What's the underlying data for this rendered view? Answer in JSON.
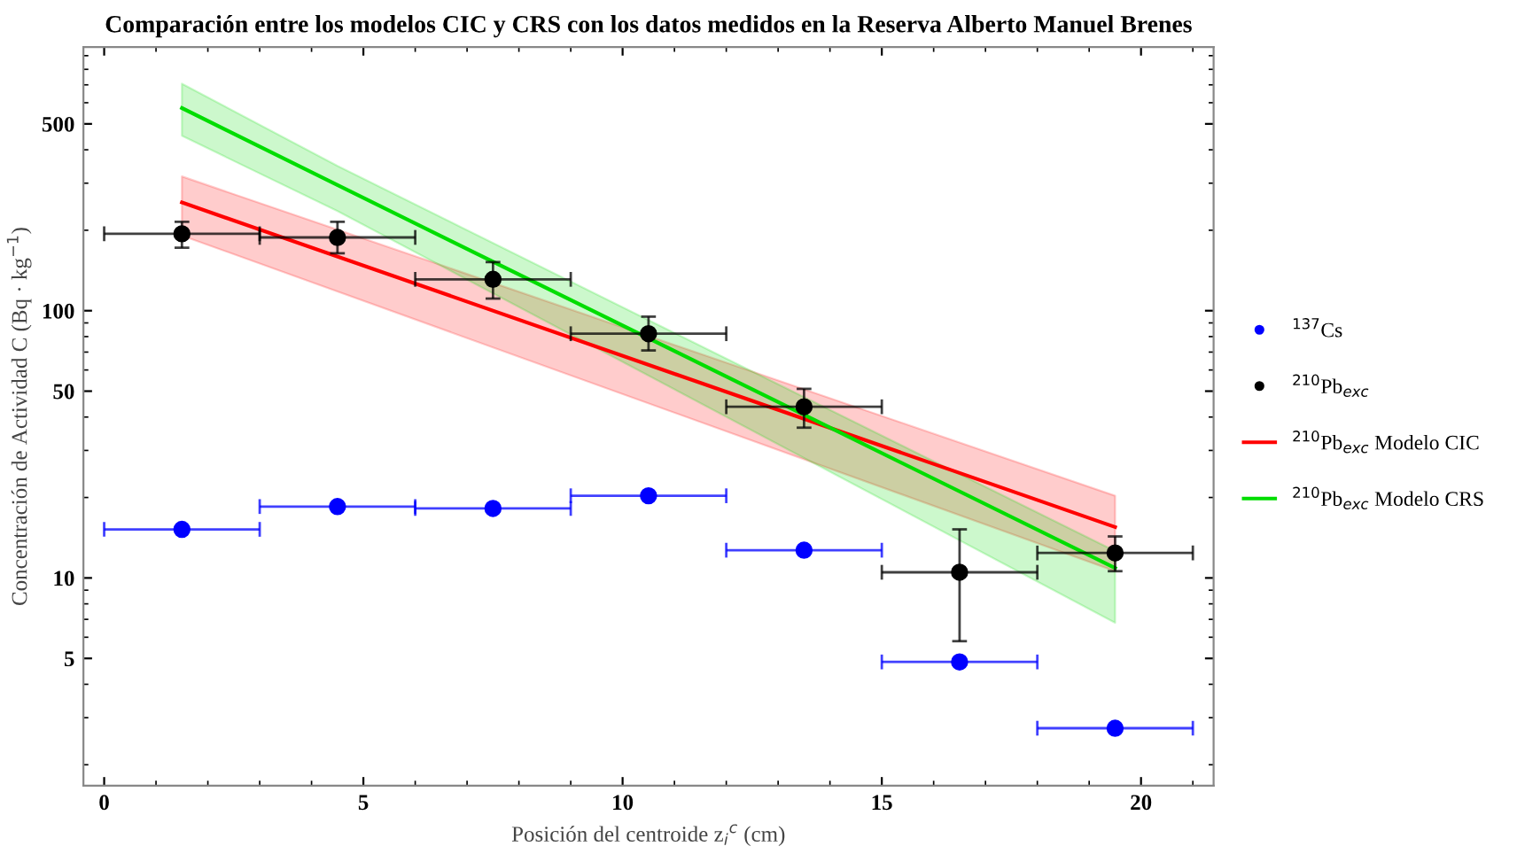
{
  "chart_data": {
    "type": "scatter",
    "title": "Comparación entre los modelos CIC y CRS con los datos medidos en la Reserva Alberto Manuel Brenes",
    "xlabel": "Posición del centroide z$_{i}$$^{c}$ (cm)",
    "ylabel": "Concentración de Actividad C (Bq · kg$^{−1}$)",
    "xlim": [
      -0.4,
      21.4
    ],
    "ylim": [
      1.67,
      970
    ],
    "xticks": [
      0,
      5,
      10,
      15,
      20
    ],
    "yticks": [
      5,
      10,
      50,
      100,
      500
    ],
    "log": "y",
    "grid": false,
    "legend": "right",
    "series": [
      {
        "name": "$^{137}$Cs",
        "marker": "circle",
        "color": "#0000ff",
        "x": [
          1.5,
          4.5,
          7.5,
          10.5,
          13.5,
          16.5,
          19.5
        ],
        "values": [
          15.2,
          18.5,
          18.2,
          20.3,
          12.7,
          4.85,
          2.74
        ],
        "xerrors": [
          1.5,
          1.5,
          1.5,
          1.5,
          1.5,
          1.5,
          1.5
        ]
      },
      {
        "name": "$^{210}$Pb$_{exc}$",
        "marker": "circle",
        "color": "#000000",
        "x": [
          1.5,
          4.5,
          7.5,
          10.5,
          13.5,
          16.5,
          19.5
        ],
        "values": [
          194,
          188,
          131,
          82,
          43.7,
          10.5,
          12.4
        ],
        "xerrors": [
          1.5,
          1.5,
          1.5,
          1.5,
          1.5,
          1.5,
          1.5
        ],
        "errors": [
          [
            172,
            215
          ],
          [
            164,
            215
          ],
          [
            111,
            152
          ],
          [
            71,
            95
          ],
          [
            36.5,
            51
          ],
          [
            5.8,
            15.2
          ],
          [
            10.6,
            14.3
          ]
        ]
      },
      {
        "name": "$^{210}$Pb$_{exc}$ Modelo CIC",
        "type": "line",
        "color": "#ff0000",
        "x": [
          1.5,
          19.5
        ],
        "values": [
          254,
          15.5
        ],
        "lower": [
          191,
          10.6
        ],
        "upper": [
          318,
          20.3
        ]
      },
      {
        "name": "$^{210}$Pb$_{exc}$ Modelo CRS",
        "type": "line",
        "color": "#00dd00",
        "x": [
          1.5,
          4.5,
          19.5
        ],
        "values": [
          573,
          295,
          10.9
        ],
        "lower": [
          451,
          236,
          6.8
        ],
        "upper": [
          707,
          348,
          12.6
        ]
      }
    ]
  }
}
